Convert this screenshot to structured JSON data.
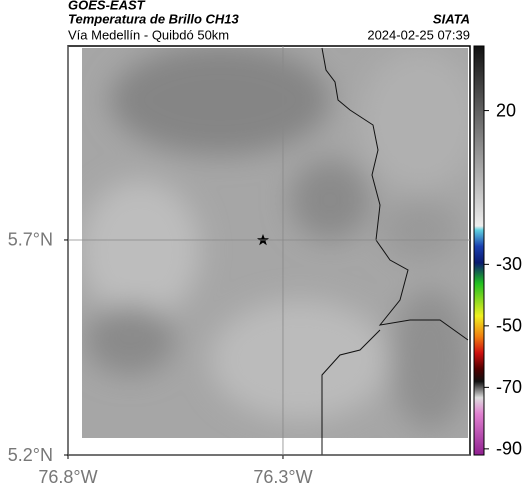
{
  "chart_data": {
    "type": "map",
    "title": "GOES-EAST",
    "subtitle": "Temperatura de Brillo CH13",
    "region": "Vía Medellín - Quibdó 50km",
    "source": "SIATA",
    "datetime": "2024-02-25 07:39",
    "xlim": [
      -76.8,
      -75.865
    ],
    "ylim": [
      5.2,
      6.151
    ],
    "xticks": [
      {
        "value": -76.8,
        "label": "76.8°W"
      },
      {
        "value": -76.3,
        "label": "76.3°W"
      }
    ],
    "yticks": [
      {
        "value": 5.2,
        "label": "5.2°N"
      },
      {
        "value": 5.7,
        "label": "5.7°N"
      }
    ],
    "grid": true,
    "clim": [
      -92,
      41
    ],
    "cticks": [
      20,
      -30,
      -50,
      -70,
      -90
    ]
  }
}
